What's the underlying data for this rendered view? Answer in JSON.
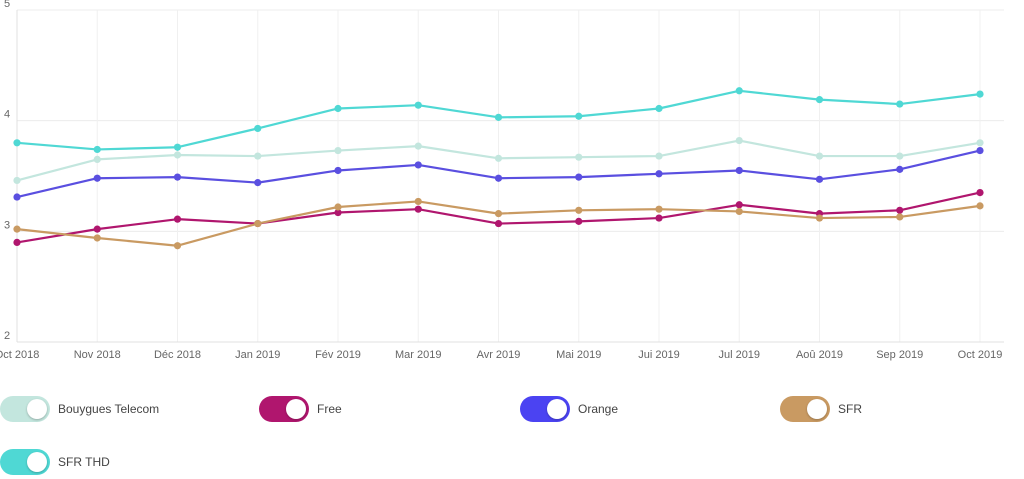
{
  "chart_data": {
    "type": "line",
    "title": "",
    "xlabel": "",
    "ylabel": "",
    "ylim": [
      2,
      5
    ],
    "yticks": [
      "2",
      "3",
      "4",
      "5"
    ],
    "grid": true,
    "legend_placement": "bottom",
    "categories": [
      "Oct 2018",
      "Nov 2018",
      "Déc 2018",
      "Jan 2019",
      "Fév 2019",
      "Mar 2019",
      "Avr 2019",
      "Mai 2019",
      "Jui 2019",
      "Jul 2019",
      "Aoû 2019",
      "Sep 2019",
      "Oct 2019"
    ],
    "series": [
      {
        "name": "Bouygues Telecom",
        "color": "#c3e6de",
        "values": [
          3.46,
          3.65,
          3.69,
          3.68,
          3.73,
          3.77,
          3.66,
          3.67,
          3.68,
          3.82,
          3.68,
          3.68,
          3.8
        ]
      },
      {
        "name": "Free",
        "color": "#b0166e",
        "values": [
          2.9,
          3.02,
          3.11,
          3.07,
          3.17,
          3.2,
          3.07,
          3.09,
          3.12,
          3.24,
          3.16,
          3.19,
          3.35
        ]
      },
      {
        "name": "Orange",
        "color": "#5a4fe0",
        "values": [
          3.31,
          3.48,
          3.49,
          3.44,
          3.55,
          3.6,
          3.48,
          3.49,
          3.52,
          3.55,
          3.47,
          3.56,
          3.73
        ]
      },
      {
        "name": "SFR",
        "color": "#c99a62",
        "values": [
          3.02,
          2.94,
          2.87,
          3.07,
          3.22,
          3.27,
          3.16,
          3.19,
          3.2,
          3.18,
          3.12,
          3.13,
          3.23
        ]
      },
      {
        "name": "SFR THD",
        "color": "#4fd8d4",
        "values": [
          3.8,
          3.74,
          3.76,
          3.93,
          4.11,
          4.14,
          4.03,
          4.04,
          4.11,
          4.27,
          4.19,
          4.15,
          4.24
        ]
      }
    ]
  },
  "legend": [
    {
      "label": "Bouygues Telecom",
      "color": "#c3e6de"
    },
    {
      "label": "Free",
      "color": "#b0166e"
    },
    {
      "label": "Orange",
      "color": "#4b43f2"
    },
    {
      "label": "SFR",
      "color": "#c99a62"
    },
    {
      "label": "SFR THD",
      "color": "#4fd8d4"
    }
  ]
}
